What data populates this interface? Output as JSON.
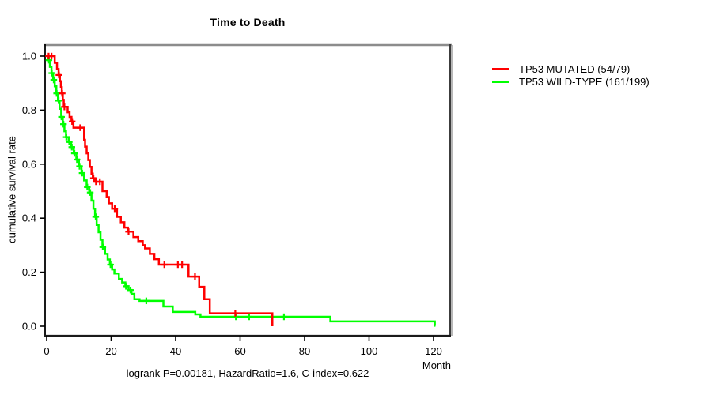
{
  "chart_data": {
    "type": "line",
    "subtype": "kaplan-meier-step-curves",
    "title": "Time to Death",
    "xlabel": "Month",
    "ylabel": "cumulative survival rate",
    "footnote": "logrank P=0.00181, HazardRatio=1.6, C-index=0.622",
    "x_ticks": [
      0,
      20,
      40,
      60,
      80,
      100,
      120
    ],
    "y_ticks": [
      0.0,
      0.2,
      0.4,
      0.6,
      0.8,
      1.0
    ],
    "xlim": [
      0,
      125
    ],
    "ylim": [
      0,
      1.04
    ],
    "grid": false,
    "legend_position": "right",
    "axis_color": "#000000",
    "box_top_color": "#8c8c8c",
    "series": [
      {
        "name": "TP53 MUTATED (54/79)",
        "color": "#ff0000",
        "end_month": 70,
        "steps": [
          [
            0,
            1.0
          ],
          [
            2.5,
            0.975
          ],
          [
            3.2,
            0.952
          ],
          [
            3.7,
            0.93
          ],
          [
            4.1,
            0.907
          ],
          [
            4.4,
            0.885
          ],
          [
            4.7,
            0.862
          ],
          [
            5.0,
            0.838
          ],
          [
            5.3,
            0.812
          ],
          [
            6.5,
            0.792
          ],
          [
            7.1,
            0.775
          ],
          [
            7.7,
            0.758
          ],
          [
            8.3,
            0.735
          ],
          [
            11.6,
            0.69
          ],
          [
            11.9,
            0.665
          ],
          [
            12.4,
            0.64
          ],
          [
            12.9,
            0.615
          ],
          [
            13.4,
            0.59
          ],
          [
            13.9,
            0.565
          ],
          [
            14.3,
            0.548
          ],
          [
            14.9,
            0.535
          ],
          [
            17.3,
            0.5
          ],
          [
            18.6,
            0.478
          ],
          [
            19.3,
            0.455
          ],
          [
            20.3,
            0.435
          ],
          [
            21.8,
            0.405
          ],
          [
            23.0,
            0.385
          ],
          [
            24.1,
            0.365
          ],
          [
            25.2,
            0.35
          ],
          [
            26.9,
            0.33
          ],
          [
            28.4,
            0.315
          ],
          [
            29.8,
            0.3
          ],
          [
            30.5,
            0.288
          ],
          [
            32.0,
            0.268
          ],
          [
            33.4,
            0.248
          ],
          [
            34.8,
            0.228
          ],
          [
            44.0,
            0.184
          ],
          [
            47.3,
            0.146
          ],
          [
            48.9,
            0.1
          ],
          [
            50.6,
            0.048
          ],
          [
            70.0,
            0.0
          ]
        ],
        "censor_months": [
          0.6,
          1.5,
          3.8,
          4.8,
          5.5,
          7.9,
          10.4,
          14.5,
          15.3,
          16.5,
          21.1,
          25.4,
          36.5,
          40.7,
          42.0,
          46.0,
          58.5
        ]
      },
      {
        "name": "TP53 WILD-TYPE (161/199)",
        "color": "#00ff00",
        "end_month": 120.6,
        "steps": [
          [
            0,
            1.0
          ],
          [
            0.5,
            0.985
          ],
          [
            1.0,
            0.96
          ],
          [
            1.5,
            0.937
          ],
          [
            2.0,
            0.912
          ],
          [
            2.5,
            0.888
          ],
          [
            3.0,
            0.862
          ],
          [
            3.5,
            0.835
          ],
          [
            4.0,
            0.805
          ],
          [
            4.5,
            0.775
          ],
          [
            5.0,
            0.748
          ],
          [
            5.5,
            0.722
          ],
          [
            6.0,
            0.7
          ],
          [
            6.8,
            0.682
          ],
          [
            7.6,
            0.663
          ],
          [
            8.4,
            0.64
          ],
          [
            9.2,
            0.617
          ],
          [
            10.0,
            0.592
          ],
          [
            10.8,
            0.567
          ],
          [
            11.6,
            0.54
          ],
          [
            12.4,
            0.515
          ],
          [
            13.2,
            0.495
          ],
          [
            13.9,
            0.465
          ],
          [
            14.5,
            0.435
          ],
          [
            15.0,
            0.405
          ],
          [
            15.5,
            0.375
          ],
          [
            16.1,
            0.348
          ],
          [
            16.7,
            0.32
          ],
          [
            17.3,
            0.293
          ],
          [
            18.1,
            0.268
          ],
          [
            18.9,
            0.247
          ],
          [
            19.6,
            0.228
          ],
          [
            20.3,
            0.21
          ],
          [
            21.0,
            0.195
          ],
          [
            22.4,
            0.175
          ],
          [
            23.4,
            0.162
          ],
          [
            24.4,
            0.148
          ],
          [
            25.4,
            0.134
          ],
          [
            26.3,
            0.12
          ],
          [
            27.2,
            0.1
          ],
          [
            28.8,
            0.094
          ],
          [
            36.2,
            0.073
          ],
          [
            39.1,
            0.053
          ],
          [
            46.1,
            0.044
          ],
          [
            47.7,
            0.035
          ],
          [
            88.0,
            0.018
          ],
          [
            120.4,
            0.002
          ]
        ],
        "censor_months": [
          0.7,
          1.6,
          2.2,
          3.1,
          3.7,
          4.6,
          5.2,
          6.1,
          7.0,
          7.8,
          8.6,
          9.4,
          10.2,
          11.0,
          12.6,
          13.5,
          15.2,
          17.4,
          19.8,
          24.6,
          26.0,
          30.9,
          58.7,
          62.8,
          73.6
        ]
      }
    ]
  }
}
